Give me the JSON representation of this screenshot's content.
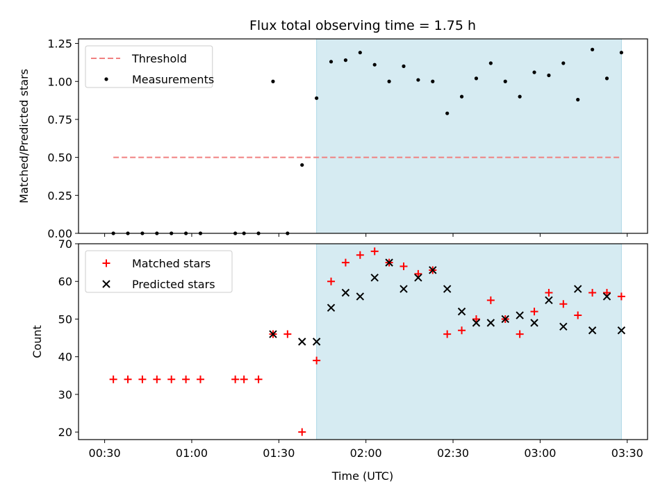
{
  "chart_data": [
    {
      "type": "scatter",
      "title": "Flux total observing time = 1.75 h",
      "xlabel": "",
      "ylabel": "Matched/Predicted stars",
      "xlim": [
        "00:21",
        "03:37"
      ],
      "ylim": [
        0,
        1.28
      ],
      "yticks": [
        "0.00",
        "0.25",
        "0.50",
        "0.75",
        "1.00",
        "1.25"
      ],
      "ytick_values": [
        0,
        0.25,
        0.5,
        0.75,
        1.0,
        1.25
      ],
      "shaded_span": [
        "01:43",
        "03:28"
      ],
      "shaded_color": "#add8e6",
      "legend_position": "upper-left",
      "series": [
        {
          "name": "Threshold",
          "style": "dashed-line",
          "color": "#f08080",
          "x": [
            "00:33",
            "03:28"
          ],
          "y": [
            0.5,
            0.5
          ]
        },
        {
          "name": "Measurements",
          "style": "dot",
          "color": "#000000",
          "x": [
            "00:33",
            "00:38",
            "00:43",
            "00:48",
            "00:53",
            "00:58",
            "01:03",
            "01:15",
            "01:18",
            "01:23",
            "01:28",
            "01:33",
            "01:38",
            "01:43",
            "01:48",
            "01:53",
            "01:58",
            "02:03",
            "02:08",
            "02:13",
            "02:18",
            "02:23",
            "02:28",
            "02:33",
            "02:38",
            "02:43",
            "02:48",
            "02:53",
            "02:58",
            "03:03",
            "03:08",
            "03:13",
            "03:18",
            "03:23",
            "03:28"
          ],
          "y": [
            0,
            0,
            0,
            0,
            0,
            0,
            0,
            0,
            0,
            0,
            1.0,
            0,
            0.45,
            0.89,
            1.13,
            1.14,
            1.19,
            1.11,
            1.0,
            1.1,
            1.01,
            1.0,
            0.79,
            0.9,
            1.02,
            1.12,
            1.0,
            0.9,
            1.06,
            1.04,
            1.12,
            0.88,
            1.21,
            1.02,
            1.19
          ]
        }
      ]
    },
    {
      "type": "scatter",
      "title": "",
      "xlabel": "Time (UTC)",
      "ylabel": "Count",
      "xlim": [
        "00:21",
        "03:37"
      ],
      "ylim": [
        18,
        70
      ],
      "yticks": [
        "20",
        "30",
        "40",
        "50",
        "60",
        "70"
      ],
      "ytick_values": [
        20,
        30,
        40,
        50,
        60,
        70
      ],
      "xticks": [
        "00:30",
        "01:00",
        "01:30",
        "02:00",
        "02:30",
        "03:00",
        "03:30"
      ],
      "shaded_span": [
        "01:43",
        "03:28"
      ],
      "shaded_color": "#add8e6",
      "legend_position": "upper-left",
      "series": [
        {
          "name": "Matched stars",
          "style": "plus",
          "color": "#ff0000",
          "x": [
            "00:33",
            "00:38",
            "00:43",
            "00:48",
            "00:53",
            "00:58",
            "01:03",
            "01:15",
            "01:18",
            "01:23",
            "01:28",
            "01:33",
            "01:38",
            "01:43",
            "01:48",
            "01:53",
            "01:58",
            "02:03",
            "02:08",
            "02:13",
            "02:18",
            "02:23",
            "02:28",
            "02:33",
            "02:38",
            "02:43",
            "02:48",
            "02:53",
            "02:58",
            "03:03",
            "03:08",
            "03:13",
            "03:18",
            "03:23",
            "03:28"
          ],
          "y": [
            34,
            34,
            34,
            34,
            34,
            34,
            34,
            34,
            34,
            34,
            46,
            46,
            20,
            39,
            60,
            65,
            67,
            68,
            65,
            64,
            62,
            63,
            46,
            47,
            50,
            55,
            50,
            46,
            52,
            57,
            54,
            51,
            57,
            57,
            56
          ]
        },
        {
          "name": "Predicted stars",
          "style": "x",
          "color": "#000000",
          "x": [
            "01:28",
            "01:38",
            "01:43",
            "01:48",
            "01:53",
            "01:58",
            "02:03",
            "02:08",
            "02:13",
            "02:18",
            "02:23",
            "02:28",
            "02:33",
            "02:38",
            "02:43",
            "02:48",
            "02:53",
            "02:58",
            "03:03",
            "03:08",
            "03:13",
            "03:18",
            "03:23",
            "03:28"
          ],
          "y": [
            46,
            44,
            44,
            53,
            57,
            56,
            61,
            65,
            58,
            61,
            63,
            58,
            52,
            49,
            49,
            50,
            51,
            49,
            55,
            48,
            58,
            47,
            56,
            47
          ]
        }
      ]
    }
  ]
}
